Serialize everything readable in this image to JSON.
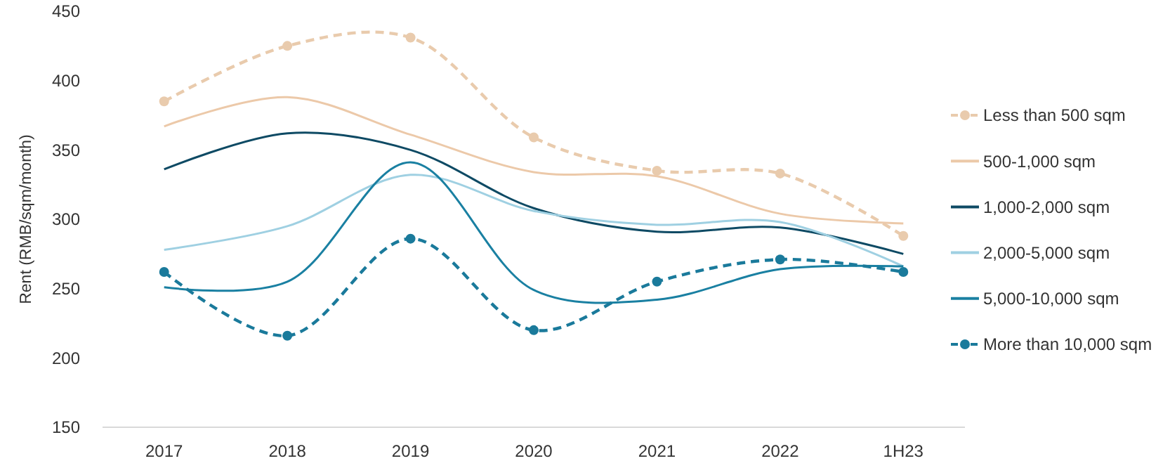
{
  "chart_data": {
    "type": "line",
    "ylabel": "Rent (RMB/sqm/month)",
    "categories": [
      "2017",
      "2018",
      "2019",
      "2020",
      "2021",
      "2022",
      "1H23"
    ],
    "series": [
      {
        "name": "Less than 500 sqm",
        "color": "#e9cbad",
        "values": [
          385,
          425,
          431,
          359,
          335,
          333,
          288
        ],
        "marker": "circle",
        "line_style": "dashed"
      },
      {
        "name": "500-1,000 sqm",
        "color": "#ecc9a9",
        "values": [
          367,
          388,
          361,
          334,
          331,
          304,
          297
        ],
        "marker": "none",
        "line_style": "solid"
      },
      {
        "name": "1,000-2,000 sqm",
        "color": "#0e4a64",
        "values": [
          336,
          362,
          350,
          308,
          291,
          294,
          275
        ],
        "marker": "none",
        "line_style": "solid"
      },
      {
        "name": "2,000-5,000 sqm",
        "color": "#9fd0e2",
        "values": [
          278,
          295,
          332,
          306,
          296,
          298,
          266
        ],
        "marker": "none",
        "line_style": "solid"
      },
      {
        "name": "5,000-10,000 sqm",
        "color": "#1a80a2",
        "values": [
          251,
          255,
          341,
          249,
          242,
          264,
          266
        ],
        "marker": "none",
        "line_style": "solid"
      },
      {
        "name": "More than 10,000 sqm",
        "color": "#1a7a9b",
        "values": [
          262,
          216,
          286,
          220,
          255,
          271,
          262
        ],
        "marker": "circle",
        "line_style": "dashed"
      }
    ],
    "ylim": [
      150,
      450
    ],
    "yticks": [
      150,
      200,
      250,
      300,
      350,
      400,
      450
    ],
    "grid": false,
    "legend": "right"
  }
}
